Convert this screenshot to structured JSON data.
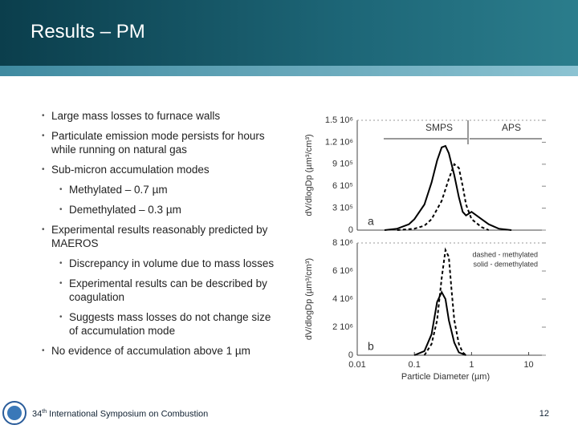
{
  "header": {
    "title": "Results – PM"
  },
  "bullets": [
    {
      "level": 1,
      "text": "Large mass losses to furnace walls"
    },
    {
      "level": 1,
      "text": "Particulate emission mode persists for hours while running on natural gas"
    },
    {
      "level": 1,
      "text": "Sub-micron accumulation modes"
    },
    {
      "level": 2,
      "text": "Methylated – 0.7 µm"
    },
    {
      "level": 2,
      "text": "Demethylated – 0.3 µm"
    },
    {
      "level": 1,
      "text": "Experimental results reasonably predicted by MAEROS"
    },
    {
      "level": 2,
      "text": "Discrepancy in volume due to mass losses"
    },
    {
      "level": 2,
      "text": "Experimental results can be described by coagulation"
    },
    {
      "level": 2,
      "text": "Suggests mass losses do not change size of accumulation mode"
    },
    {
      "level": 1,
      "text": "No evidence of accumulation above 1 µm"
    }
  ],
  "chart_data": [
    {
      "type": "line",
      "xlog": true,
      "ylabel": "dV/dlogDp (µm³/cm³)",
      "xlim": [
        0.01,
        20
      ],
      "ylim": [
        0,
        1500000
      ],
      "yticks": [
        0,
        {
          "value": 300000,
          "label": "3 10⁵"
        },
        {
          "value": 600000,
          "label": "6 10⁵"
        },
        {
          "value": 900000,
          "label": "9 10⁵"
        },
        {
          "value": 1200000,
          "label": "1.2 10⁶"
        },
        {
          "value": 1500000,
          "label": "1.5 10⁶"
        }
      ],
      "annotations": [
        "SMPS",
        "APS",
        "a"
      ],
      "series": [
        {
          "color": "#000000",
          "dash": false,
          "x": [
            0.03,
            0.05,
            0.08,
            0.1,
            0.15,
            0.2,
            0.25,
            0.3,
            0.35,
            0.4,
            0.5,
            0.6,
            0.7,
            0.8,
            1,
            1.5,
            2,
            3,
            5
          ],
          "values": [
            0,
            20000,
            80000,
            150000,
            350000,
            650000,
            950000,
            1130000,
            1150000,
            1050000,
            750000,
            450000,
            250000,
            200000,
            250000,
            150000,
            80000,
            20000,
            0
          ]
        },
        {
          "color": "#000000",
          "dash": true,
          "x": [
            0.05,
            0.1,
            0.15,
            0.2,
            0.3,
            0.4,
            0.5,
            0.6,
            0.7,
            0.8,
            1,
            1.5,
            2
          ],
          "values": [
            0,
            20000,
            60000,
            150000,
            400000,
            700000,
            900000,
            850000,
            600000,
            350000,
            150000,
            40000,
            0
          ]
        }
      ]
    },
    {
      "type": "line",
      "xlog": true,
      "ylabel": "dV/dlogDp (µm³/cm³)",
      "xlabel": "Particle Diameter (µm)",
      "xlim": [
        0.01,
        20
      ],
      "ylim": [
        0,
        8000000
      ],
      "xticks": [
        0.01,
        0.1,
        1,
        10
      ],
      "yticks": [
        0,
        {
          "value": 2000000,
          "label": "2 10⁶"
        },
        {
          "value": 4000000,
          "label": "4 10⁶"
        },
        {
          "value": 6000000,
          "label": "6 10⁶"
        },
        {
          "value": 8000000,
          "label": "8 10⁶"
        }
      ],
      "annotations": [
        "b"
      ],
      "series": [
        {
          "name": "dashed - methylated",
          "color": "#000000",
          "dash": true,
          "x": [
            0.15,
            0.2,
            0.25,
            0.3,
            0.35,
            0.4,
            0.45,
            0.5,
            0.6,
            0.7,
            0.8
          ],
          "values": [
            0,
            800000,
            2500000,
            5500000,
            7500000,
            7000000,
            4500000,
            2500000,
            800000,
            200000,
            0
          ]
        },
        {
          "name": "solid - demethylated",
          "color": "#000000",
          "dash": false,
          "x": [
            0.1,
            0.15,
            0.2,
            0.25,
            0.3,
            0.35,
            0.4,
            0.5,
            0.6,
            0.8
          ],
          "values": [
            0,
            300000,
            1500000,
            3800000,
            4500000,
            4000000,
            2500000,
            900000,
            200000,
            0
          ]
        }
      ]
    }
  ],
  "footer": {
    "ordinal": "34",
    "ordinal_suffix": "th",
    "event": "International Symposium on Combustion",
    "page_number": "12"
  }
}
